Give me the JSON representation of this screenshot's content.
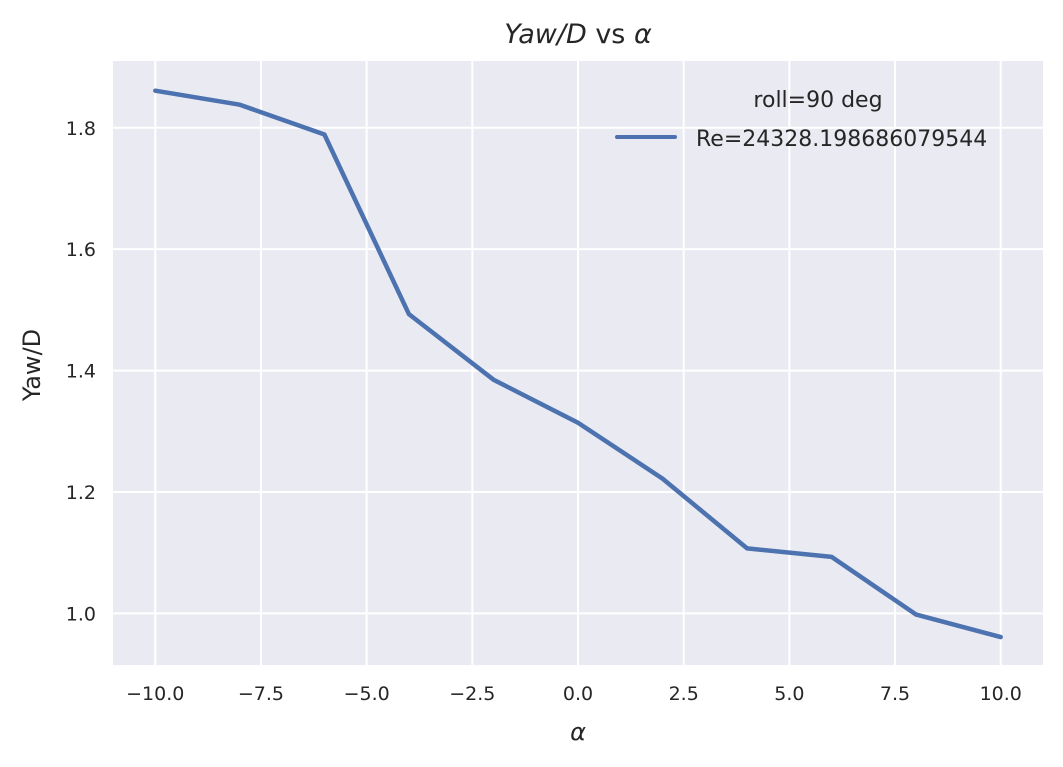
{
  "chart_data": {
    "type": "line",
    "title": "Yaw/D vs α",
    "title_parts": {
      "italic": "Yaw/D",
      "plain": " vs ",
      "symbol": "α"
    },
    "xlabel": "α",
    "ylabel": "Yaw/D",
    "xlim": [
      -11.0,
      11.0
    ],
    "ylim": [
      0.915,
      1.91
    ],
    "xticks": [
      -10.0,
      -7.5,
      -5.0,
      -2.5,
      0.0,
      2.5,
      5.0,
      7.5,
      10.0
    ],
    "xtick_labels": [
      "−10.0",
      "−7.5",
      "−5.0",
      "−2.5",
      "0.0",
      "2.5",
      "5.0",
      "7.5",
      "10.0"
    ],
    "yticks": [
      1.0,
      1.2,
      1.4,
      1.6,
      1.8
    ],
    "ytick_labels": [
      "1.0",
      "1.2",
      "1.4",
      "1.6",
      "1.8"
    ],
    "grid": true,
    "legend_position": "top-right",
    "legend_title": "roll=90 deg",
    "series": [
      {
        "name": "Re=24328.198686079544",
        "color": "#4c72b0",
        "x": [
          -10,
          -8,
          -6,
          -4,
          -2,
          0,
          2,
          4,
          6,
          8,
          10
        ],
        "y": [
          1.861,
          1.838,
          1.789,
          1.493,
          1.385,
          1.314,
          1.222,
          1.107,
          1.093,
          0.998,
          0.961
        ]
      }
    ]
  },
  "colors": {
    "plot_background": "#eaeaf2",
    "grid": "#ffffff",
    "text": "#262626"
  }
}
